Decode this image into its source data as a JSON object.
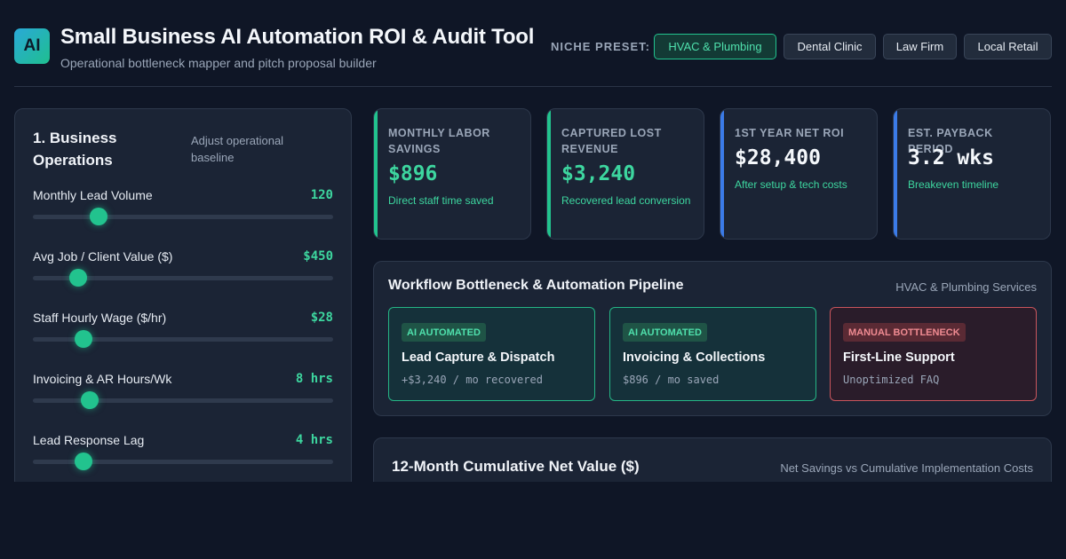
{
  "header": {
    "logo_text": "AI",
    "title": "Small Business AI Automation ROI & Audit Tool",
    "subtitle": "Operational bottleneck mapper and pitch proposal builder",
    "niche_label": "NICHE PRESET:",
    "presets": [
      {
        "label": "HVAC & Plumbing",
        "active": true
      },
      {
        "label": "Dental Clinic",
        "active": false
      },
      {
        "label": "Law Firm",
        "active": false
      },
      {
        "label": "Local Retail",
        "active": false
      }
    ]
  },
  "operations": {
    "title": "1. Business Operations",
    "hint": "Adjust operational baseline",
    "sliders": [
      {
        "label": "Monthly Lead Volume",
        "value": "120",
        "level": 0.22
      },
      {
        "label": "Avg Job / Client Value ($)",
        "value": "$450",
        "level": 0.15
      },
      {
        "label": "Staff Hourly Wage ($/hr)",
        "value": "$28",
        "level": 0.17
      },
      {
        "label": "Invoicing & AR Hours/Wk",
        "value": "8 hrs",
        "level": 0.19
      },
      {
        "label": "Lead Response Lag",
        "value": "4 hrs",
        "level": 0.17
      }
    ]
  },
  "kpis": [
    {
      "label": "MONTHLY LABOR SAVINGS",
      "value": "$896",
      "desc": "Direct staff time saved",
      "accent": "#22c38e",
      "value_color": "#3dd69f"
    },
    {
      "label": "CAPTURED LOST REVENUE",
      "value": "$3,240",
      "desc": "Recovered lead conversion",
      "accent": "#22c38e",
      "value_color": "#3dd69f"
    },
    {
      "label": "1ST YEAR NET ROI",
      "value": "$28,400",
      "desc": "After setup & tech costs",
      "accent": "#3b7be8",
      "value_color": "#f4f7fb"
    },
    {
      "label": "EST. PAYBACK PERIOD",
      "value": "3.2 wks",
      "desc": "Breakeven timeline",
      "accent": "#3b7be8",
      "value_color": "#f4f7fb"
    }
  ],
  "pipeline": {
    "title": "Workflow Bottleneck & Automation Pipeline",
    "subtitle": "HVAC & Plumbing Services",
    "steps": [
      {
        "badge": "AI AUTOMATED",
        "title": "Lead Capture & Dispatch",
        "detail": "+$3,240 / mo recovered",
        "status": "auto"
      },
      {
        "badge": "AI AUTOMATED",
        "title": "Invoicing & Collections",
        "detail": "$896 / mo saved",
        "status": "auto"
      },
      {
        "badge": "MANUAL BOTTLENECK",
        "title": "First-Line Support",
        "detail": "Unoptimized FAQ",
        "status": "manual"
      }
    ]
  },
  "chart_section": {
    "title": "12-Month Cumulative Net Value ($)",
    "subtitle": "Net Savings vs Cumulative Implementation Costs"
  }
}
